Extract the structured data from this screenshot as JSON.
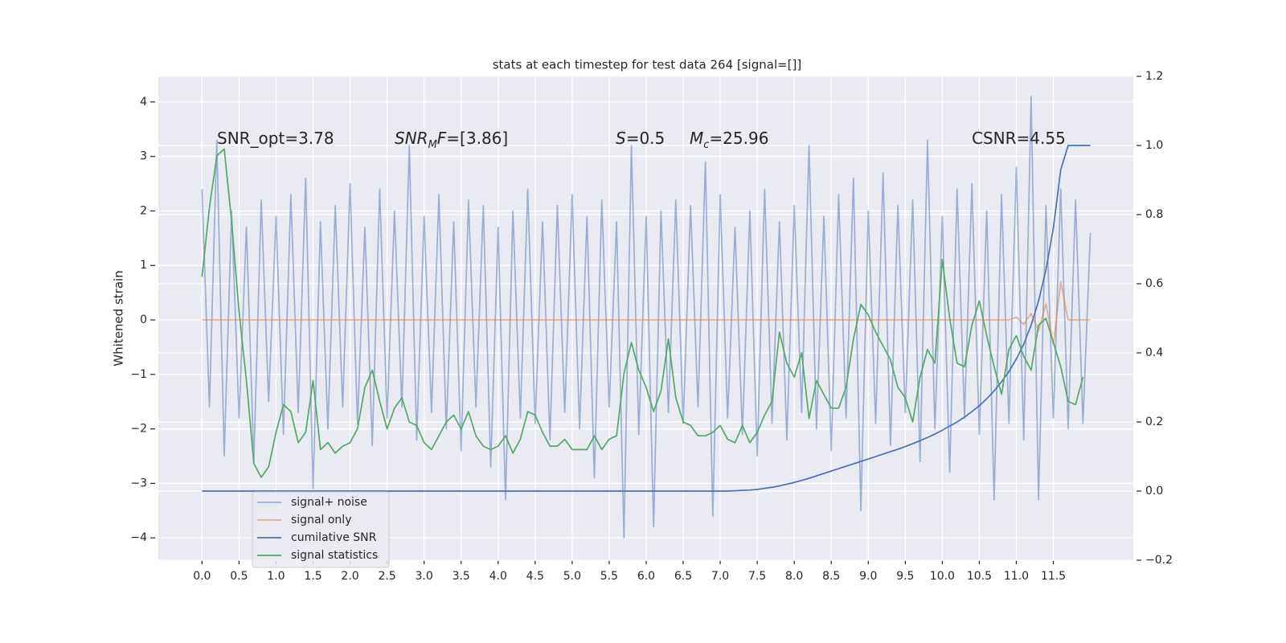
{
  "chart_data": {
    "type": "line",
    "title": "stats at each timestep for test data 264 [signal=[]]",
    "ylabel": "Whitened strain",
    "grid": true,
    "background": "#eaeaf2",
    "legend_loc": "lower left",
    "xlim": [
      -0.59,
      12.58
    ],
    "ylim": [
      -4.41,
      4.47
    ],
    "y2lim": [
      -0.2,
      1.2
    ],
    "xticks": [
      {
        "value": 0,
        "label": "0.0"
      },
      0.5,
      {
        "value": 1,
        "label": "1.0"
      },
      1.5,
      {
        "value": 2,
        "label": "2.0"
      },
      2.5,
      {
        "value": 3,
        "label": "3.0"
      },
      3.5,
      {
        "value": 4,
        "label": "4.0"
      },
      4.5,
      {
        "value": 5,
        "label": "5.0"
      },
      5.5,
      {
        "value": 6,
        "label": "6.0"
      },
      6.5,
      {
        "value": 7,
        "label": "7.0"
      },
      7.5,
      {
        "value": 8,
        "label": "8.0"
      },
      8.5,
      {
        "value": 9,
        "label": "9.0"
      },
      9.5,
      {
        "value": 10,
        "label": "10.0"
      },
      10.5,
      {
        "value": 11,
        "label": "11.0"
      },
      11.5
    ],
    "yticks": [
      {
        "value": -4,
        "label": "−4"
      },
      {
        "value": -3,
        "label": "−3"
      },
      {
        "value": -2,
        "label": "−2"
      },
      {
        "value": -1,
        "label": "−1"
      },
      0,
      1,
      2,
      3,
      4
    ],
    "y2ticks": [
      {
        "value": -0.2,
        "label": "−0.2"
      },
      {
        "value": 0,
        "label": "0.0"
      },
      0.2,
      0.4,
      0.6,
      0.8,
      {
        "value": 1,
        "label": "1.0"
      },
      1.2
    ],
    "annotations": [
      {
        "parts": [
          {
            "text": "SNR_opt=3.78"
          }
        ]
      },
      {
        "parts": [
          {
            "text": "SNR",
            "italic": true
          },
          {
            "text": "M",
            "italic": true,
            "sub": true
          },
          {
            "text": "F",
            "italic": true
          },
          {
            "text": "=[3.86]"
          }
        ]
      },
      {
        "parts": [
          {
            "text": "S",
            "italic": true
          },
          {
            "text": "=0.5"
          }
        ]
      },
      {
        "parts": [
          {
            "text": "M",
            "italic": true
          },
          {
            "text": "c",
            "italic": true,
            "sub": true
          },
          {
            "text": "=25.96"
          }
        ]
      },
      {
        "parts": [
          {
            "text": "CSNR=4.55"
          }
        ]
      }
    ],
    "x": [
      0,
      0.1,
      0.2,
      0.3,
      0.4,
      0.5,
      0.6,
      0.7,
      0.8,
      0.9,
      1,
      1.1,
      1.2,
      1.3,
      1.4,
      1.5,
      1.6,
      1.7,
      1.8,
      1.9,
      2,
      2.1,
      2.2,
      2.3,
      2.4,
      2.5,
      2.6,
      2.7,
      2.8,
      2.9,
      3,
      3.1,
      3.2,
      3.3,
      3.4,
      3.5,
      3.6,
      3.7,
      3.8,
      3.9,
      4,
      4.1,
      4.2,
      4.3,
      4.4,
      4.5,
      4.6,
      4.7,
      4.8,
      4.9,
      5,
      5.1,
      5.2,
      5.3,
      5.4,
      5.5,
      5.6,
      5.7,
      5.8,
      5.9,
      6,
      6.1,
      6.2,
      6.3,
      6.4,
      6.5,
      6.6,
      6.7,
      6.8,
      6.9,
      7,
      7.1,
      7.2,
      7.3,
      7.4,
      7.5,
      7.6,
      7.7,
      7.8,
      7.9,
      8,
      8.1,
      8.2,
      8.3,
      8.4,
      8.5,
      8.6,
      8.7,
      8.8,
      8.9,
      9,
      9.1,
      9.2,
      9.3,
      9.4,
      9.5,
      9.6,
      9.7,
      9.8,
      9.9,
      10,
      10.1,
      10.2,
      10.3,
      10.4,
      10.5,
      10.6,
      10.7,
      10.8,
      10.9,
      11,
      11.1,
      11.2,
      11.3,
      11.4,
      11.5,
      11.6,
      11.7,
      11.8,
      11.9,
      12
    ],
    "series": [
      {
        "name": "signal+ noise",
        "color": "#4c72b0",
        "opacity": 0.5,
        "axis": "y",
        "values": [
          2.4,
          -1.6,
          3.3,
          -2.5,
          2.0,
          -1.8,
          1.7,
          -2.6,
          2.2,
          -1.5,
          1.9,
          -2.1,
          2.3,
          -1.7,
          2.6,
          -3.1,
          1.8,
          -2.0,
          2.1,
          -1.6,
          2.5,
          -1.9,
          1.7,
          -2.3,
          2.4,
          -1.8,
          2.0,
          -1.6,
          3.2,
          -2.2,
          1.9,
          -1.7,
          2.3,
          -2.0,
          1.8,
          -2.4,
          2.2,
          -1.6,
          2.1,
          -2.7,
          1.7,
          -3.3,
          2.0,
          -1.8,
          2.4,
          -1.9,
          1.8,
          -2.2,
          2.1,
          -1.7,
          2.3,
          -2.0,
          1.9,
          -2.9,
          2.2,
          -1.6,
          1.8,
          -4.0,
          3.2,
          -2.1,
          1.9,
          -3.8,
          2.0,
          -1.7,
          2.2,
          -1.9,
          2.1,
          -1.6,
          2.9,
          -3.6,
          2.3,
          -1.8,
          1.7,
          -2.1,
          2.0,
          -2.5,
          2.4,
          -1.9,
          1.8,
          -2.2,
          2.1,
          -1.7,
          3.2,
          -2.0,
          1.9,
          -2.4,
          2.3,
          -1.8,
          2.6,
          -3.5,
          2.0,
          -1.9,
          2.7,
          -2.3,
          2.1,
          -1.7,
          2.2,
          -2.6,
          3.3,
          -2.0,
          1.9,
          -2.8,
          2.4,
          -1.8,
          2.5,
          -2.1,
          2.0,
          -3.3,
          2.3,
          -1.9,
          2.8,
          -2.2,
          4.1,
          -3.3,
          2.1,
          -1.8,
          2.4,
          -2.0,
          2.2,
          -1.9,
          1.6
        ]
      },
      {
        "name": "signal only",
        "color": "#dd8452",
        "opacity": 0.6,
        "axis": "y",
        "values": [
          0,
          0,
          0,
          0,
          0,
          0,
          0,
          0,
          0,
          0,
          0,
          0,
          0,
          0,
          0,
          0,
          0,
          0,
          0,
          0,
          0,
          0,
          0,
          0,
          0,
          0,
          0,
          0,
          0,
          0,
          0,
          0,
          0,
          0,
          0,
          0,
          0,
          0,
          0,
          0,
          0,
          0,
          0,
          0,
          0,
          0,
          0,
          0,
          0,
          0,
          0,
          0,
          0,
          0,
          0,
          0,
          0,
          0,
          0,
          0,
          0,
          0,
          0,
          0,
          0,
          0,
          0,
          0,
          0,
          0,
          0,
          0,
          0,
          0,
          0,
          0,
          0,
          0,
          0,
          0,
          0,
          0,
          0,
          0,
          0,
          0,
          0,
          0,
          0,
          0,
          0,
          0,
          0,
          0,
          0,
          0,
          0,
          0,
          0,
          0,
          0,
          0,
          0,
          0,
          0,
          0,
          0,
          0,
          0,
          0,
          0.05,
          -0.08,
          0.12,
          -0.2,
          0.3,
          -0.45,
          0.7,
          0,
          0,
          0,
          0
        ]
      },
      {
        "name": "cumilative SNR",
        "color": "#4c72b0",
        "opacity": 1,
        "axis": "y2",
        "values": [
          0,
          0,
          0,
          0,
          0,
          0,
          0,
          0,
          0,
          0,
          0,
          0,
          0,
          0,
          0,
          0,
          0,
          0,
          0,
          0,
          0,
          0,
          0,
          0,
          0,
          0,
          0,
          0,
          0,
          0,
          0,
          0,
          0,
          0,
          0,
          0,
          0,
          0,
          0,
          0,
          0,
          0,
          0,
          0,
          0,
          0,
          0,
          0,
          0,
          0,
          0,
          0,
          0,
          0,
          0,
          0,
          0,
          0,
          0,
          0,
          0,
          0,
          0,
          0,
          0,
          0,
          0,
          0,
          0,
          0,
          0,
          0,
          0.001,
          0.002,
          0.003,
          0.005,
          0.008,
          0.011,
          0.015,
          0.02,
          0.025,
          0.031,
          0.037,
          0.044,
          0.051,
          0.058,
          0.065,
          0.072,
          0.079,
          0.086,
          0.093,
          0.1,
          0.107,
          0.114,
          0.121,
          0.129,
          0.137,
          0.146,
          0.155,
          0.165,
          0.176,
          0.188,
          0.2,
          0.214,
          0.23,
          0.247,
          0.267,
          0.29,
          0.316,
          0.346,
          0.382,
          0.425,
          0.48,
          0.55,
          0.64,
          0.76,
          0.93,
          1,
          1,
          1,
          1
        ]
      },
      {
        "name": "signal statistics",
        "color": "#55a868",
        "opacity": 1,
        "axis": "y2",
        "values": [
          0.62,
          0.82,
          0.97,
          0.99,
          0.78,
          0.52,
          0.32,
          0.08,
          0.04,
          0.07,
          0.17,
          0.25,
          0.23,
          0.14,
          0.17,
          0.32,
          0.12,
          0.14,
          0.11,
          0.13,
          0.14,
          0.18,
          0.3,
          0.35,
          0.26,
          0.18,
          0.24,
          0.27,
          0.2,
          0.19,
          0.14,
          0.12,
          0.16,
          0.2,
          0.22,
          0.18,
          0.23,
          0.16,
          0.13,
          0.12,
          0.13,
          0.16,
          0.11,
          0.15,
          0.23,
          0.22,
          0.17,
          0.13,
          0.13,
          0.15,
          0.12,
          0.12,
          0.12,
          0.16,
          0.12,
          0.15,
          0.16,
          0.34,
          0.43,
          0.35,
          0.3,
          0.23,
          0.29,
          0.44,
          0.27,
          0.2,
          0.19,
          0.16,
          0.16,
          0.17,
          0.19,
          0.15,
          0.14,
          0.19,
          0.14,
          0.17,
          0.22,
          0.26,
          0.46,
          0.37,
          0.33,
          0.4,
          0.21,
          0.32,
          0.28,
          0.24,
          0.24,
          0.3,
          0.44,
          0.54,
          0.51,
          0.46,
          0.42,
          0.38,
          0.3,
          0.27,
          0.2,
          0.33,
          0.41,
          0.37,
          0.67,
          0.5,
          0.37,
          0.36,
          0.48,
          0.55,
          0.45,
          0.36,
          0.28,
          0.41,
          0.45,
          0.39,
          0.35,
          0.48,
          0.5,
          0.43,
          0.36,
          0.26,
          0.25,
          0.33,
          null
        ]
      }
    ]
  }
}
